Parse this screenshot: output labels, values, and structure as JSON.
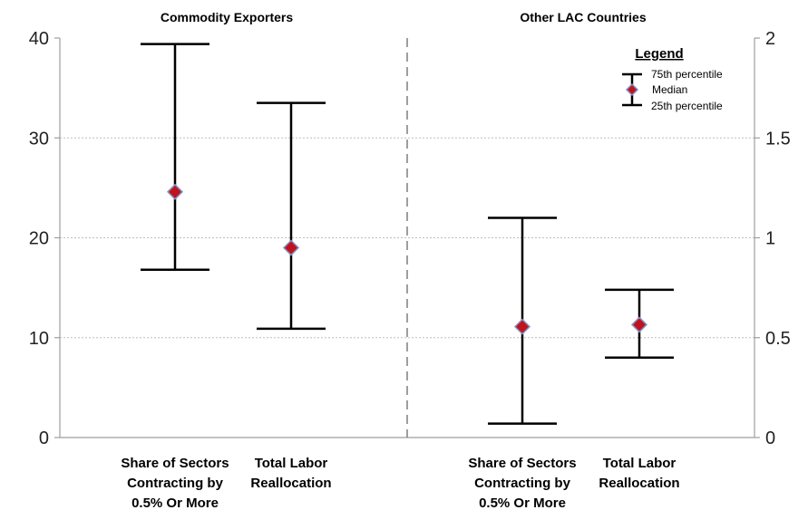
{
  "chart_data": {
    "type": "range",
    "left_axis": {
      "ylim": [
        0,
        40
      ],
      "ticks": [
        "0",
        "10",
        "20",
        "30",
        "40"
      ]
    },
    "right_axis": {
      "ylim": [
        0,
        2
      ],
      "ticks": [
        "0",
        "0.5",
        "1",
        "1.5",
        "2"
      ]
    },
    "grid": "horizontal-dotted",
    "panels": [
      {
        "title": "Commodity Exporters",
        "series": [
          {
            "category": [
              "Share of Sectors",
              "Contracting by",
              "0.5% Or More"
            ],
            "axis": "left",
            "p25": 16.8,
            "median": 24.6,
            "p75": 39.4
          },
          {
            "category": [
              "Total Labor",
              "Reallocation"
            ],
            "axis": "right",
            "p25": 0.545,
            "median": 0.95,
            "p75": 1.675
          }
        ]
      },
      {
        "title": "Other LAC Countries",
        "series": [
          {
            "category": [
              "Share of Sectors",
              "Contracting by",
              "0.5% Or More"
            ],
            "axis": "left",
            "p25": 1.4,
            "median": 11.1,
            "p75": 22.0
          },
          {
            "category": [
              "Total Labor",
              "Reallocation"
            ],
            "axis": "right",
            "p25": 0.4,
            "median": 0.565,
            "p75": 0.74
          }
        ]
      }
    ],
    "legend": {
      "title": "Legend",
      "position": "top-right",
      "items": [
        "75th percentile",
        "Median",
        "25th percentile"
      ]
    }
  }
}
